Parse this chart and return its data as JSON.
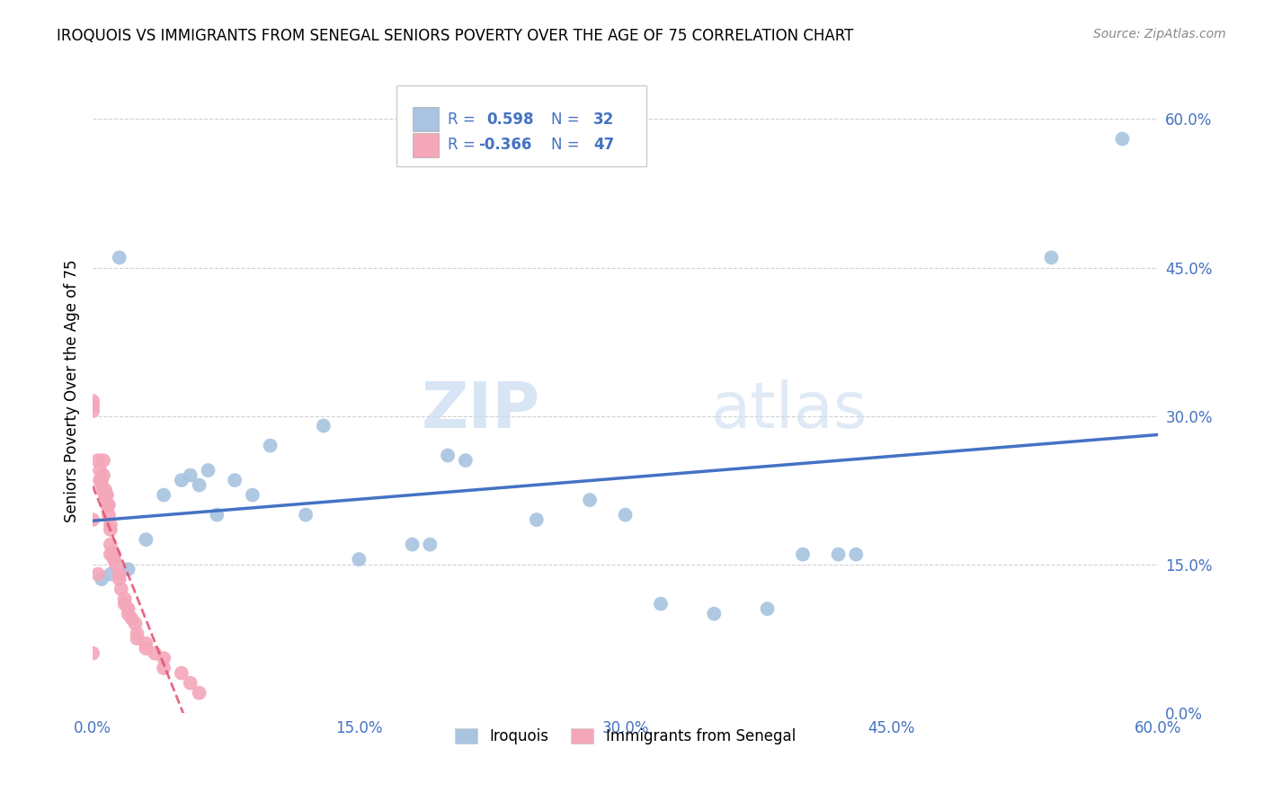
{
  "title": "IROQUOIS VS IMMIGRANTS FROM SENEGAL SENIORS POVERTY OVER THE AGE OF 75 CORRELATION CHART",
  "source": "Source: ZipAtlas.com",
  "ylabel": "Seniors Poverty Over the Age of 75",
  "iroquois_color": "#a8c4e0",
  "senegal_color": "#f4a7b9",
  "iroquois_line_color": "#4472C4",
  "senegal_line_color": "#E05070",
  "watermark_zip": "ZIP",
  "watermark_atlas": "atlas",
  "xmin": 0.0,
  "xmax": 0.6,
  "ymin": 0.0,
  "ymax": 0.65,
  "yticks": [
    0.0,
    0.15,
    0.3,
    0.45,
    0.6
  ],
  "xticks": [
    0.0,
    0.15,
    0.3,
    0.45,
    0.6
  ],
  "iroquois_x": [
    0.005,
    0.01,
    0.015,
    0.02,
    0.03,
    0.04,
    0.05,
    0.055,
    0.06,
    0.065,
    0.07,
    0.08,
    0.09,
    0.1,
    0.12,
    0.13,
    0.15,
    0.18,
    0.19,
    0.2,
    0.21,
    0.25,
    0.28,
    0.3,
    0.32,
    0.35,
    0.38,
    0.4,
    0.42,
    0.43,
    0.54,
    0.58
  ],
  "iroquois_y": [
    0.135,
    0.14,
    0.46,
    0.145,
    0.175,
    0.22,
    0.235,
    0.24,
    0.23,
    0.245,
    0.2,
    0.235,
    0.22,
    0.27,
    0.2,
    0.29,
    0.155,
    0.17,
    0.17,
    0.26,
    0.255,
    0.195,
    0.215,
    0.2,
    0.11,
    0.1,
    0.105,
    0.16,
    0.16,
    0.16,
    0.46,
    0.58
  ],
  "senegal_x": [
    0.0,
    0.0,
    0.0,
    0.0,
    0.0,
    0.003,
    0.003,
    0.004,
    0.004,
    0.005,
    0.005,
    0.006,
    0.006,
    0.007,
    0.007,
    0.008,
    0.008,
    0.009,
    0.009,
    0.01,
    0.01,
    0.01,
    0.01,
    0.012,
    0.012,
    0.013,
    0.015,
    0.015,
    0.016,
    0.018,
    0.018,
    0.02,
    0.02,
    0.022,
    0.024,
    0.025,
    0.025,
    0.03,
    0.03,
    0.035,
    0.04,
    0.04,
    0.05,
    0.055,
    0.06,
    0.006,
    0.007
  ],
  "senegal_y": [
    0.305,
    0.315,
    0.31,
    0.195,
    0.06,
    0.255,
    0.14,
    0.245,
    0.235,
    0.235,
    0.23,
    0.24,
    0.225,
    0.225,
    0.22,
    0.22,
    0.21,
    0.21,
    0.2,
    0.19,
    0.185,
    0.17,
    0.16,
    0.16,
    0.155,
    0.15,
    0.14,
    0.135,
    0.125,
    0.115,
    0.11,
    0.105,
    0.1,
    0.095,
    0.09,
    0.08,
    0.075,
    0.07,
    0.065,
    0.06,
    0.055,
    0.045,
    0.04,
    0.03,
    0.02,
    0.255,
    0.22
  ]
}
